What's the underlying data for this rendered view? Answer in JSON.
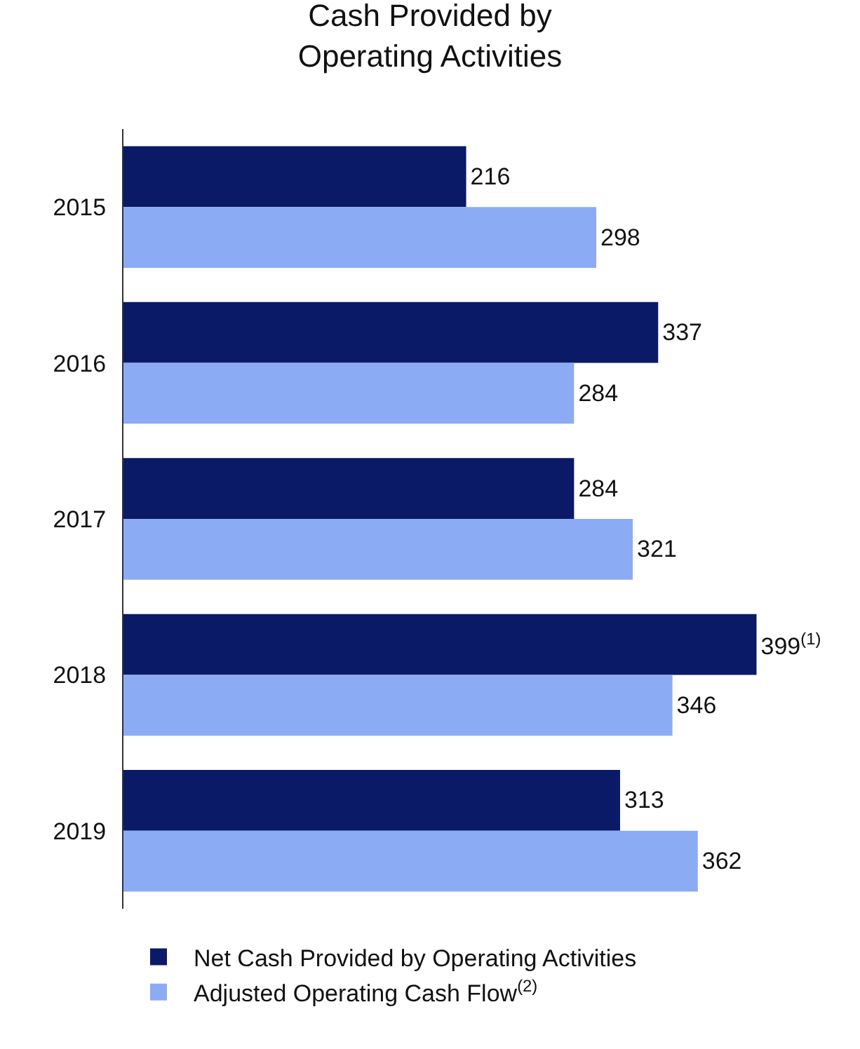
{
  "chart_data": {
    "type": "bar",
    "orientation": "horizontal",
    "title": "Cash Provided by\nOperating Activities",
    "categories": [
      "2015",
      "2016",
      "2017",
      "2018",
      "2019"
    ],
    "series": [
      {
        "name": "Net Cash Provided by Operating Activities",
        "color": "#0b1a66",
        "values": [
          216,
          337,
          284,
          399,
          313
        ],
        "value_labels": [
          "216",
          "337",
          "284",
          "399$^{(1)}$",
          "313"
        ]
      },
      {
        "name": "Adjusted Operating Cash Flow$^{(2)}$",
        "color": "#8cabf5",
        "values": [
          298,
          284,
          321,
          346,
          362
        ],
        "value_labels": [
          "298",
          "284",
          "321",
          "346",
          "362"
        ]
      }
    ],
    "tick_labels": "y",
    "legend": "bottom"
  }
}
